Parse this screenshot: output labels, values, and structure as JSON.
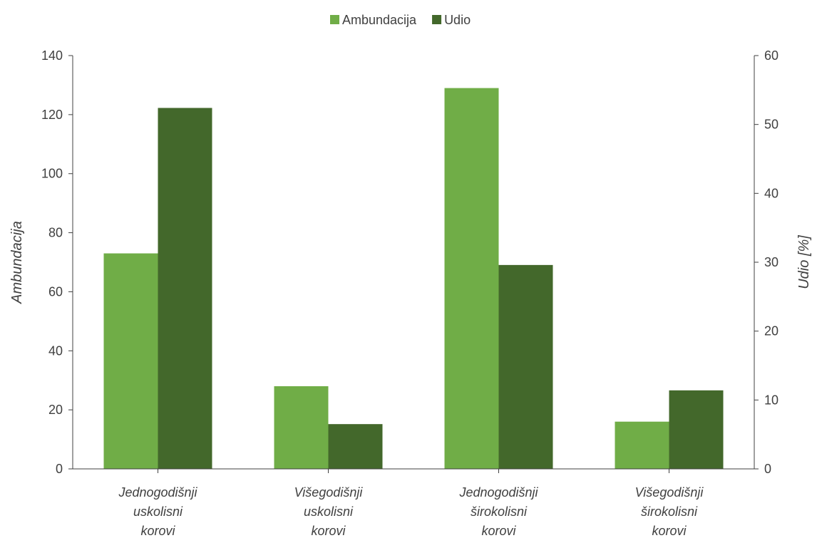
{
  "chart_data": {
    "type": "bar",
    "categories": [
      [
        "Jednogodišnji",
        "uskolisni",
        "korovi"
      ],
      [
        "Višegodišnji",
        "uskolisni",
        "korovi"
      ],
      [
        "Jednogodišnji",
        "širokolisni",
        "korovi"
      ],
      [
        "Višegodišnji",
        "širokolisni",
        "korovi"
      ]
    ],
    "series": [
      {
        "name": "Ambundacija",
        "axis": "left",
        "color": "#70ad47",
        "values": [
          73,
          28,
          129,
          16
        ]
      },
      {
        "name": "Udio",
        "axis": "right",
        "color": "#43682b",
        "values": [
          52.4,
          6.5,
          29.6,
          11.4
        ]
      }
    ],
    "ylabel": "Ambundacija",
    "ylabel_right": "Udio [%]",
    "ylim": [
      0,
      140
    ],
    "ylim_right": [
      0,
      60
    ],
    "yticks": [
      "0",
      "20",
      "40",
      "60",
      "80",
      "100",
      "120",
      "140"
    ],
    "yticks_right": [
      "0",
      "10",
      "20",
      "30",
      "40",
      "50",
      "60"
    ],
    "legend_position": "top-center",
    "grid": false
  }
}
